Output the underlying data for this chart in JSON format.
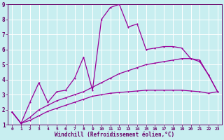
{
  "title": "",
  "xlabel": "Windchill (Refroidissement éolien,°C)",
  "bg_color": "#c8eef0",
  "plot_bg": "#c8eef0",
  "grid_color": "#ffffff",
  "line_color": "#990099",
  "axis_color": "#660066",
  "xlim": [
    -0.5,
    23.5
  ],
  "ylim": [
    1,
    9
  ],
  "xticks": [
    0,
    1,
    2,
    3,
    4,
    5,
    6,
    7,
    8,
    9,
    10,
    11,
    12,
    13,
    14,
    15,
    16,
    17,
    18,
    19,
    20,
    21,
    22,
    23
  ],
  "yticks": [
    1,
    2,
    3,
    4,
    5,
    6,
    7,
    8,
    9
  ],
  "line1_x": [
    0,
    1,
    2,
    3,
    4,
    5,
    6,
    7,
    8,
    9,
    10,
    11,
    12,
    13,
    14,
    15,
    16,
    17,
    18,
    19,
    20,
    21,
    22,
    23
  ],
  "line1_y": [
    1.85,
    1.1,
    2.5,
    3.8,
    2.5,
    3.2,
    3.3,
    4.1,
    5.5,
    3.3,
    8.0,
    8.8,
    9.0,
    7.5,
    7.7,
    6.0,
    6.1,
    6.2,
    6.2,
    6.1,
    5.4,
    5.2,
    4.3,
    3.2
  ],
  "line2_x": [
    0,
    1,
    2,
    3,
    4,
    5,
    6,
    7,
    8,
    9,
    10,
    11,
    12,
    13,
    14,
    15,
    16,
    17,
    18,
    19,
    20,
    21,
    22,
    23
  ],
  "line2_y": [
    1.85,
    1.1,
    1.5,
    2.0,
    2.3,
    2.6,
    2.8,
    3.0,
    3.2,
    3.5,
    3.8,
    4.1,
    4.4,
    4.6,
    4.8,
    5.0,
    5.1,
    5.2,
    5.3,
    5.4,
    5.4,
    5.3,
    4.3,
    3.2
  ],
  "line3_x": [
    0,
    1,
    2,
    3,
    4,
    5,
    6,
    7,
    8,
    9,
    10,
    11,
    12,
    13,
    14,
    15,
    16,
    17,
    18,
    19,
    20,
    21,
    22,
    23
  ],
  "line3_y": [
    1.85,
    1.1,
    1.3,
    1.6,
    1.9,
    2.1,
    2.3,
    2.5,
    2.7,
    2.9,
    3.0,
    3.1,
    3.15,
    3.2,
    3.25,
    3.3,
    3.3,
    3.3,
    3.3,
    3.3,
    3.25,
    3.2,
    3.1,
    3.2
  ]
}
